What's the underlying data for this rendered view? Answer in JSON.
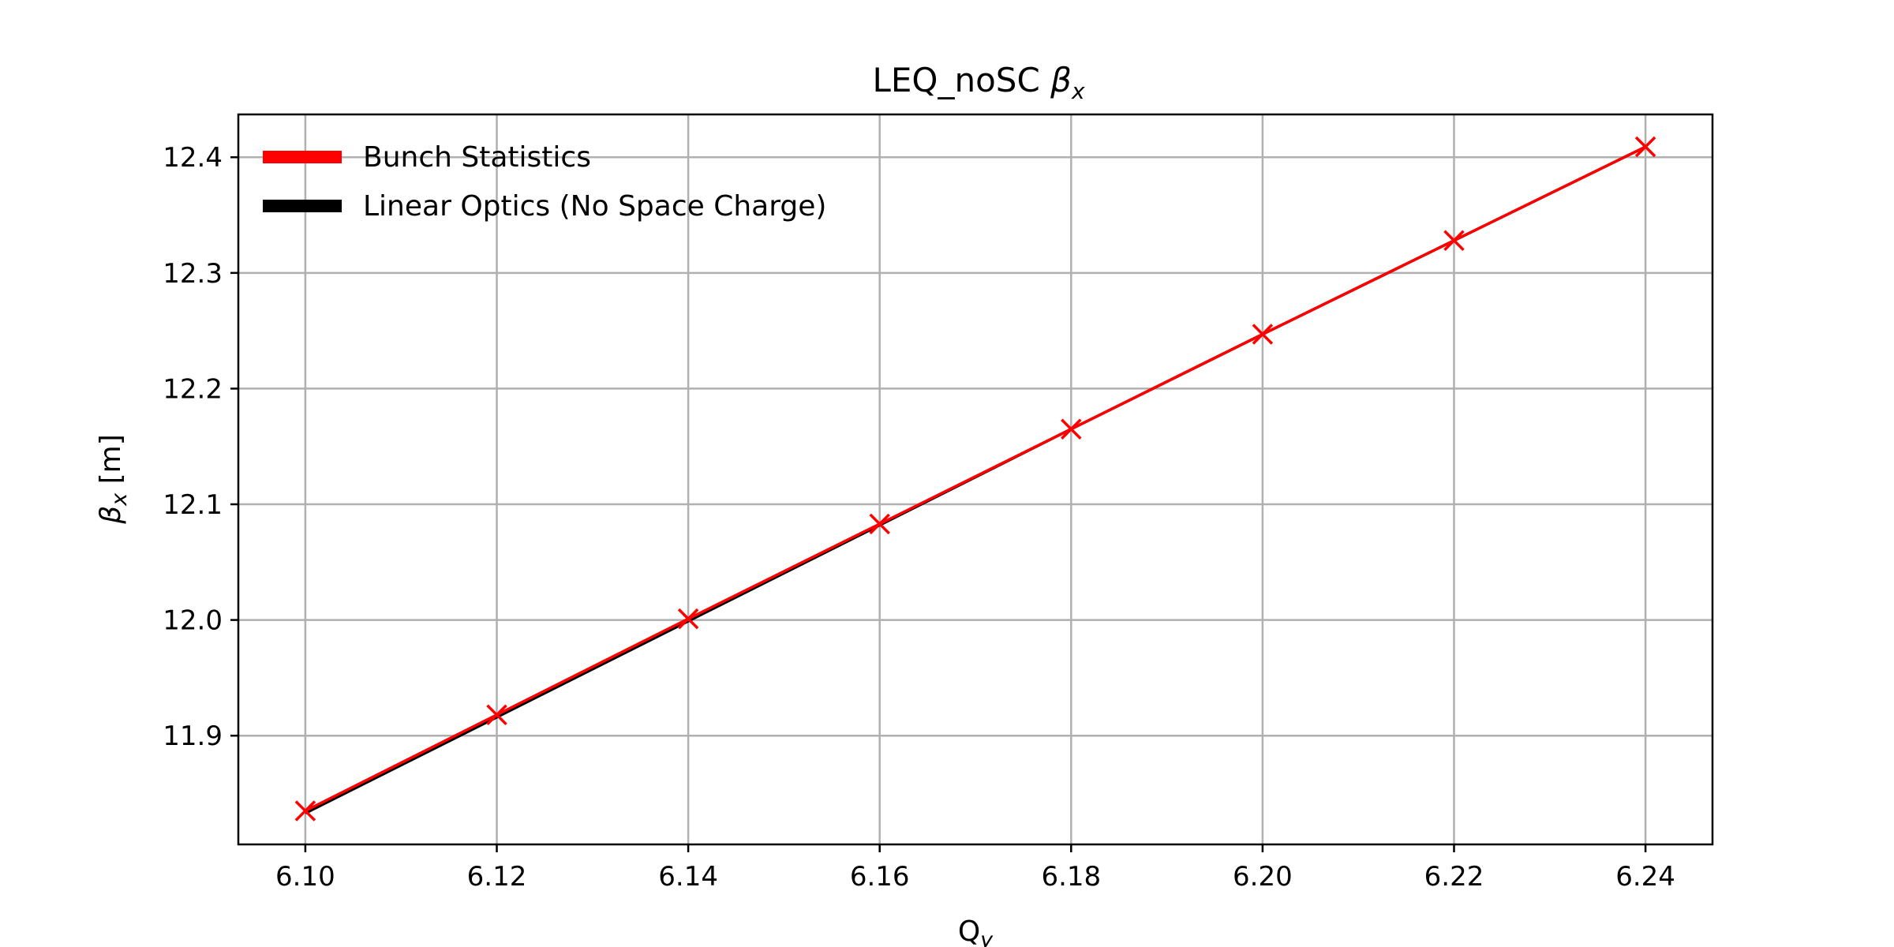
{
  "chart_data": {
    "type": "line",
    "title": "LEQ_noSC βx",
    "title_main": "LEQ_noSC ",
    "title_symbol": "β",
    "title_sub": "x",
    "xlabel": "Q",
    "xlabel_sub": "y",
    "ylabel": "β",
    "ylabel_sub": "x",
    "ylabel_unit": " [m]",
    "xlim": [
      6.093,
      6.247
    ],
    "ylim": [
      11.806,
      12.437
    ],
    "xticks": [
      6.1,
      6.12,
      6.14,
      6.16,
      6.18,
      6.2,
      6.22,
      6.24
    ],
    "xtick_labels": [
      "6.10",
      "6.12",
      "6.14",
      "6.16",
      "6.18",
      "6.20",
      "6.22",
      "6.24"
    ],
    "yticks": [
      11.9,
      12.0,
      12.1,
      12.2,
      12.3,
      12.4
    ],
    "ytick_labels": [
      "11.9",
      "12.0",
      "12.1",
      "12.2",
      "12.3",
      "12.4"
    ],
    "grid": true,
    "legend_position": "top-left",
    "x": [
      6.1,
      6.12,
      6.14,
      6.16,
      6.18,
      6.2,
      6.22,
      6.24
    ],
    "series": [
      {
        "name": "Bunch Statistics",
        "color": "#ff0000",
        "marker": "x",
        "values": [
          11.835,
          11.918,
          12.001,
          12.083,
          12.165,
          12.247,
          12.328,
          12.409
        ]
      },
      {
        "name": "Linear Optics (No Space Charge)",
        "color": "#000000",
        "marker": "none",
        "values": [
          11.833,
          11.916,
          11.999,
          12.082,
          12.165,
          12.247,
          12.328,
          12.409
        ]
      }
    ]
  }
}
